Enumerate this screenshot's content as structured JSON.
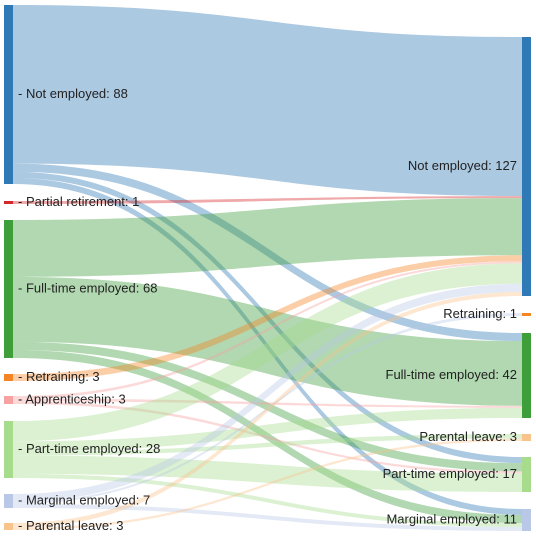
{
  "chart_data": {
    "type": "sankey",
    "left_nodes": [
      {
        "id": "L_not",
        "label": "- Not employed: 88",
        "value": 88,
        "color": "#2f79b7"
      },
      {
        "id": "L_partial",
        "label": "- Partial retirement: 1",
        "value": 1,
        "color": "#d6272b"
      },
      {
        "id": "L_full",
        "label": "- Full-time employed: 68",
        "value": 68,
        "color": "#3d9e3a"
      },
      {
        "id": "L_retrain",
        "label": "- Retraining: 3",
        "value": 3,
        "color": "#f48524"
      },
      {
        "id": "L_appr",
        "label": "- Apprenticeship: 3",
        "value": 3,
        "color": "#f7a1a1"
      },
      {
        "id": "L_part",
        "label": "- Part-time employed: 28",
        "value": 28,
        "color": "#a6dc8c"
      },
      {
        "id": "L_marg",
        "label": "- Marginal employed: 7",
        "value": 7,
        "color": "#b8c8e6"
      },
      {
        "id": "L_par",
        "label": "- Parental leave: 3",
        "value": 3,
        "color": "#f9c38c"
      }
    ],
    "right_nodes": [
      {
        "id": "R_not",
        "label": "Not employed: 127",
        "value": 127,
        "color": "#2f79b7"
      },
      {
        "id": "R_retrain",
        "label": "Retraining: 1",
        "value": 1,
        "color": "#f48524"
      },
      {
        "id": "R_full",
        "label": "Full-time employed: 42",
        "value": 42,
        "color": "#3d9e3a"
      },
      {
        "id": "R_par",
        "label": "Parental leave: 3",
        "value": 3,
        "color": "#f9c38c"
      },
      {
        "id": "R_part",
        "label": "Part-time employed: 17",
        "value": 17,
        "color": "#a6dc8c"
      },
      {
        "id": "R_marg",
        "label": "Marginal employed: 11",
        "value": 11,
        "color": "#b8c8e6"
      }
    ],
    "links": [
      {
        "source": "L_not",
        "target": "R_not",
        "value": 78
      },
      {
        "source": "L_not",
        "target": "R_full",
        "value": 4
      },
      {
        "source": "L_not",
        "target": "R_part",
        "value": 3
      },
      {
        "source": "L_not",
        "target": "R_marg",
        "value": 3
      },
      {
        "source": "L_partial",
        "target": "R_not",
        "value": 1
      },
      {
        "source": "L_full",
        "target": "R_not",
        "value": 28
      },
      {
        "source": "L_full",
        "target": "R_full",
        "value": 32
      },
      {
        "source": "L_full",
        "target": "R_part",
        "value": 4
      },
      {
        "source": "L_full",
        "target": "R_marg",
        "value": 4
      },
      {
        "source": "L_retrain",
        "target": "R_not",
        "value": 3
      },
      {
        "source": "L_appr",
        "target": "R_not",
        "value": 1
      },
      {
        "source": "L_appr",
        "target": "R_full",
        "value": 1
      },
      {
        "source": "L_appr",
        "target": "R_part",
        "value": 1
      },
      {
        "source": "L_part",
        "target": "R_not",
        "value": 10
      },
      {
        "source": "L_part",
        "target": "R_full",
        "value": 5
      },
      {
        "source": "L_part",
        "target": "R_part",
        "value": 9
      },
      {
        "source": "L_part",
        "target": "R_marg",
        "value": 2
      },
      {
        "source": "L_part",
        "target": "R_par",
        "value": 2
      },
      {
        "source": "L_marg",
        "target": "R_not",
        "value": 4
      },
      {
        "source": "L_marg",
        "target": "R_retrain",
        "value": 1
      },
      {
        "source": "L_marg",
        "target": "R_marg",
        "value": 2
      },
      {
        "source": "L_par",
        "target": "R_not",
        "value": 2
      },
      {
        "source": "L_par",
        "target": "R_par",
        "value": 1
      }
    ]
  }
}
